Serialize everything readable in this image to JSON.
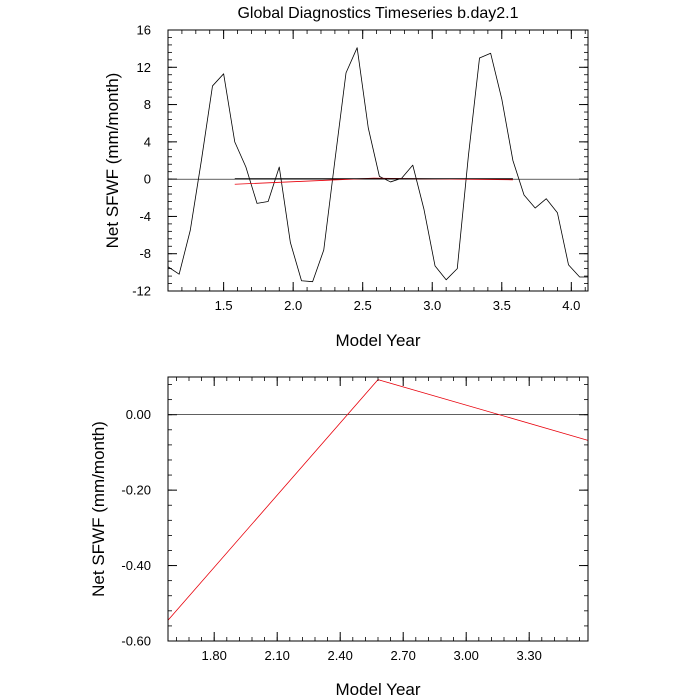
{
  "figure": {
    "title": "Global Diagnostics Timeseries b.day2.1"
  },
  "chart_data": [
    {
      "type": "line",
      "title": "Global Diagnostics Timeseries b.day2.1",
      "xlabel": "Model Year",
      "ylabel": "Net SFWF (mm/month)",
      "xlim": [
        1.1,
        4.12
      ],
      "ylim": [
        -12,
        16
      ],
      "xticks": [
        1.5,
        2.0,
        2.5,
        3.0,
        3.5,
        4.0
      ],
      "xtick_labels": [
        "1.5",
        "2.0",
        "2.5",
        "3.0",
        "3.5",
        "4.0"
      ],
      "yticks": [
        -12,
        -8,
        -4,
        0,
        4,
        8,
        12,
        16
      ],
      "ytick_labels": [
        "-12",
        "-8",
        "-4",
        "0",
        "4",
        "8",
        "12",
        "16"
      ],
      "reference_line": 0,
      "series": [
        {
          "color": "#000000",
          "x": [
            1.1,
            1.18,
            1.26,
            1.34,
            1.42,
            1.5,
            1.58,
            1.66,
            1.74,
            1.82,
            1.9,
            1.98,
            2.06,
            2.14,
            2.22,
            2.3,
            2.38,
            2.46,
            2.54,
            2.62,
            2.7,
            2.78,
            2.86,
            2.94,
            3.02,
            3.1,
            3.18,
            3.26,
            3.34,
            3.42,
            3.5,
            3.58,
            3.66,
            3.74,
            3.82,
            3.9,
            3.98,
            4.06,
            4.12
          ],
          "y": [
            -9.4,
            -10.2,
            -5.5,
            2,
            10,
            11.3,
            4,
            1.3,
            -2.6,
            -2.4,
            1.3,
            -6.8,
            -10.9,
            -11,
            -7.6,
            2,
            11.4,
            14.1,
            5.5,
            0.3,
            -0.3,
            0.1,
            1.5,
            -3.2,
            -9.3,
            -10.8,
            -9.6,
            2.5,
            13,
            13.5,
            8.6,
            2,
            -1.7,
            -3.1,
            -2.1,
            -3.6,
            -9.2,
            -10.5,
            -10.5
          ]
        },
        {
          "color": "#e8000b",
          "x": [
            1.58,
            2.58,
            3.58
          ],
          "y": [
            -0.55,
            0.1,
            -0.07
          ]
        },
        {
          "color": "#000000",
          "x": [
            1.58,
            2.58,
            3.58
          ],
          "y": [
            0.05,
            0.05,
            0.05
          ]
        }
      ]
    },
    {
      "type": "line",
      "title": "",
      "xlabel": "Model Year",
      "ylabel": "Net SFWF (mm/month)",
      "xlim": [
        1.58,
        3.58
      ],
      "ylim": [
        -0.6,
        0.1
      ],
      "xticks": [
        1.8,
        2.1,
        2.4,
        2.7,
        3.0,
        3.3
      ],
      "xtick_labels": [
        "1.80",
        "2.10",
        "2.40",
        "2.70",
        "3.00",
        "3.30"
      ],
      "yticks": [
        -0.6,
        -0.4,
        -0.2,
        0.0
      ],
      "ytick_labels": [
        "-0.60",
        "-0.40",
        "-0.20",
        "0.00"
      ],
      "reference_line": 0,
      "series": [
        {
          "color": "#e8000b",
          "x": [
            1.58,
            2.58,
            3.58
          ],
          "y": [
            -0.545,
            0.093,
            -0.068
          ]
        }
      ]
    }
  ]
}
